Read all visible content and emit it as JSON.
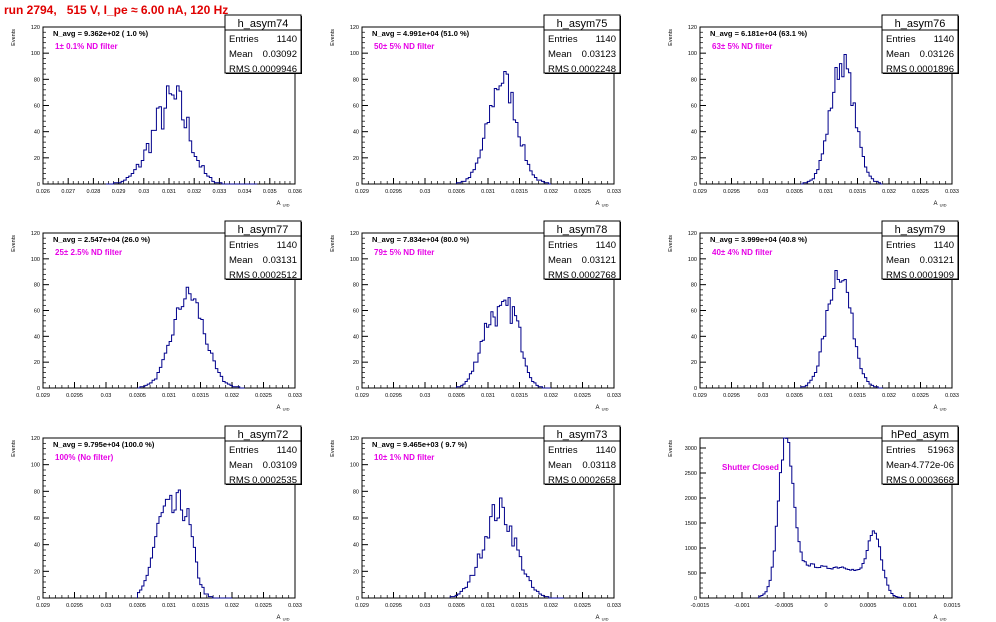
{
  "page_title": "run 2794,   515 V, I_pe ≈ 6.00 nA, 120 Hz",
  "colors": {
    "hist": "#00008b",
    "annotation": "#e600e6",
    "title": "#e00000",
    "frame": "#000000"
  },
  "chart_data": [
    {
      "type": "bar",
      "name": "h_asym74",
      "xlabel": "A_UID",
      "ylabel": "Events",
      "xlim": [
        0.026,
        0.036
      ],
      "ylim": [
        0,
        120
      ],
      "xticks": [
        "0.026",
        "0.027",
        "0.028",
        "0.029",
        "0.03",
        "0.031",
        "0.032",
        "0.033",
        "0.034",
        "0.035",
        "0.036"
      ],
      "yticks": [
        "0",
        "20",
        "40",
        "60",
        "80",
        "100",
        "120"
      ],
      "stats": {
        "entries_label": "Entries",
        "entries": "1140",
        "mean_label": "Mean",
        "mean": "0.03092",
        "rms_label": "RMS",
        "rms": "0.0009946"
      },
      "navg": "N_avg = 9.362e+02 ( 1.0 %)",
      "filter": "1± 0.1% ND filter",
      "dist": {
        "peaks": [
          {
            "mu": 0.0309,
            "sigma": 0.0007,
            "amp": 48
          },
          {
            "mu": 0.0315,
            "sigma": 0.0005,
            "amp": 22
          }
        ],
        "range": [
          0.0285,
          0.0345
        ],
        "bins": 60,
        "noise": 0.3
      }
    },
    {
      "type": "bar",
      "name": "h_asym75",
      "xlabel": "A_UID",
      "ylabel": "Events",
      "xlim": [
        0.029,
        0.033
      ],
      "ylim": [
        0,
        120
      ],
      "xticks": [
        "0.029",
        "0.0295",
        "0.03",
        "0.0305",
        "0.031",
        "0.0315",
        "0.032",
        "0.0325",
        "0.033"
      ],
      "yticks": [
        "0",
        "20",
        "40",
        "60",
        "80",
        "100",
        "120"
      ],
      "stats": {
        "entries_label": "Entries",
        "entries": "1140",
        "mean_label": "Mean",
        "mean": "0.03123",
        "rms_label": "RMS",
        "rms": "0.0002248"
      },
      "navg": "N_avg = 4.991e+04 (51.0 %)",
      "filter": "50± 5% ND filter",
      "dist": {
        "peaks": [
          {
            "mu": 0.03123,
            "sigma": 0.000225,
            "amp": 80
          }
        ],
        "range": [
          0.0305,
          0.032
        ],
        "bins": 40,
        "noise": 0.15
      }
    },
    {
      "type": "bar",
      "name": "h_asym76",
      "xlabel": "A_UID",
      "ylabel": "Events",
      "xlim": [
        0.029,
        0.033
      ],
      "ylim": [
        0,
        120
      ],
      "xticks": [
        "0.029",
        "0.0295",
        "0.03",
        "0.0305",
        "0.031",
        "0.0315",
        "0.032",
        "0.0325",
        "0.033"
      ],
      "yticks": [
        "0",
        "20",
        "40",
        "60",
        "80",
        "100",
        "120"
      ],
      "stats": {
        "entries_label": "Entries",
        "entries": "1140",
        "mean_label": "Mean",
        "mean": "0.03126",
        "rms_label": "RMS",
        "rms": "0.0001896"
      },
      "navg": "N_avg = 6.181e+04 (63.1 %)",
      "filter": "63± 5% ND filter",
      "dist": {
        "peaks": [
          {
            "mu": 0.03126,
            "sigma": 0.00019,
            "amp": 93
          }
        ],
        "range": [
          0.0306,
          0.0319
        ],
        "bins": 36,
        "noise": 0.12
      }
    },
    {
      "type": "bar",
      "name": "h_asym77",
      "xlabel": "A_UID",
      "ylabel": "Events",
      "xlim": [
        0.029,
        0.033
      ],
      "ylim": [
        0,
        120
      ],
      "xticks": [
        "0.029",
        "0.0295",
        "0.03",
        "0.0305",
        "0.031",
        "0.0315",
        "0.032",
        "0.0325",
        "0.033"
      ],
      "yticks": [
        "0",
        "20",
        "40",
        "60",
        "80",
        "100",
        "120"
      ],
      "stats": {
        "entries_label": "Entries",
        "entries": "1140",
        "mean_label": "Mean",
        "mean": "0.03131",
        "rms_label": "RMS",
        "rms": "0.0002512"
      },
      "navg": "N_avg = 2.547e+04 (26.0 %)",
      "filter": "25± 2.5% ND filter",
      "dist": {
        "peaks": [
          {
            "mu": 0.03131,
            "sigma": 0.00025,
            "amp": 72
          }
        ],
        "range": [
          0.0305,
          0.0322
        ],
        "bins": 44,
        "noise": 0.12
      }
    },
    {
      "type": "bar",
      "name": "h_asym78",
      "xlabel": "A_UID",
      "ylabel": "Events",
      "xlim": [
        0.029,
        0.033
      ],
      "ylim": [
        0,
        120
      ],
      "xticks": [
        "0.029",
        "0.0295",
        "0.03",
        "0.0305",
        "0.031",
        "0.0315",
        "0.032",
        "0.0325",
        "0.033"
      ],
      "yticks": [
        "0",
        "20",
        "40",
        "60",
        "80",
        "100",
        "120"
      ],
      "stats": {
        "entries_label": "Entries",
        "entries": "1140",
        "mean_label": "Mean",
        "mean": "0.03121",
        "rms_label": "RMS",
        "rms": "0.0002768"
      },
      "navg": "N_avg = 7.834e+04 (80.0 %)",
      "filter": "79± 5% ND filter",
      "dist": {
        "peaks": [
          {
            "mu": 0.03105,
            "sigma": 0.00018,
            "amp": 52
          },
          {
            "mu": 0.0314,
            "sigma": 0.00015,
            "amp": 50
          }
        ],
        "range": [
          0.0305,
          0.032
        ],
        "bins": 44,
        "noise": 0.18
      }
    },
    {
      "type": "bar",
      "name": "h_asym79",
      "xlabel": "A_UID",
      "ylabel": "Events",
      "xlim": [
        0.029,
        0.033
      ],
      "ylim": [
        0,
        120
      ],
      "xticks": [
        "0.029",
        "0.0295",
        "0.03",
        "0.0305",
        "0.031",
        "0.0315",
        "0.032",
        "0.0325",
        "0.033"
      ],
      "yticks": [
        "0",
        "20",
        "40",
        "60",
        "80",
        "100",
        "120"
      ],
      "stats": {
        "entries_label": "Entries",
        "entries": "1140",
        "mean_label": "Mean",
        "mean": "0.03121",
        "rms_label": "RMS",
        "rms": "0.0001909"
      },
      "navg": "N_avg = 3.999e+04 (40.8 %)",
      "filter": "40± 4% ND filter",
      "dist": {
        "peaks": [
          {
            "mu": 0.03121,
            "sigma": 0.00019,
            "amp": 92
          }
        ],
        "range": [
          0.0306,
          0.0319
        ],
        "bins": 36,
        "noise": 0.12
      }
    },
    {
      "type": "bar",
      "name": "h_asym72",
      "xlabel": "A_UID",
      "ylabel": "Events",
      "xlim": [
        0.029,
        0.033
      ],
      "ylim": [
        0,
        120
      ],
      "xticks": [
        "0.029",
        "0.0295",
        "0.03",
        "0.0305",
        "0.031",
        "0.0315",
        "0.032",
        "0.0325",
        "0.033"
      ],
      "yticks": [
        "0",
        "20",
        "40",
        "60",
        "80",
        "100",
        "120"
      ],
      "stats": {
        "entries_label": "Entries",
        "entries": "1140",
        "mean_label": "Mean",
        "mean": "0.03109",
        "rms_label": "RMS",
        "rms": "0.0002535"
      },
      "navg": "N_avg = 9.795e+04 (100.0 %)",
      "filter": "100% (No filter)",
      "dist": {
        "peaks": [
          {
            "mu": 0.03092,
            "sigma": 0.00017,
            "amp": 60
          },
          {
            "mu": 0.03125,
            "sigma": 0.00014,
            "amp": 58
          }
        ],
        "range": [
          0.0305,
          0.032
        ],
        "bins": 44,
        "noise": 0.18
      }
    },
    {
      "type": "bar",
      "name": "h_asym73",
      "xlabel": "A_UID",
      "ylabel": "Events",
      "xlim": [
        0.029,
        0.033
      ],
      "ylim": [
        0,
        120
      ],
      "xticks": [
        "0.029",
        "0.0295",
        "0.03",
        "0.0305",
        "0.031",
        "0.0315",
        "0.032",
        "0.0325",
        "0.033"
      ],
      "yticks": [
        "0",
        "20",
        "40",
        "60",
        "80",
        "100",
        "120"
      ],
      "stats": {
        "entries_label": "Entries",
        "entries": "1140",
        "mean_label": "Mean",
        "mean": "0.03118",
        "rms_label": "RMS",
        "rms": "0.0002658"
      },
      "navg": "N_avg = 9.465e+03 ( 9.7 %)",
      "filter": "10± 1% ND filter",
      "dist": {
        "peaks": [
          {
            "mu": 0.03118,
            "sigma": 0.00026,
            "amp": 66
          }
        ],
        "range": [
          0.0304,
          0.0322
        ],
        "bins": 46,
        "noise": 0.16
      }
    },
    {
      "type": "bar",
      "name": "hPed_asym",
      "xlabel": "A_UID",
      "ylabel": "Events",
      "xlim": [
        -0.0015,
        0.0015
      ],
      "ylim": [
        0,
        3200
      ],
      "xticks": [
        "-0.0015",
        "-0.001",
        "-0.0005",
        "0",
        "0.0005",
        "0.001",
        "0.0015"
      ],
      "yticks": [
        "0",
        "500",
        "1000",
        "1500",
        "2000",
        "2500",
        "3000"
      ],
      "stats": {
        "entries_label": "Entries",
        "entries": "51963",
        "mean_label": "Mean",
        "mean": "-4.772e-06",
        "rms_label": "RMS",
        "rms": "0.0003668"
      },
      "navg": "",
      "filter": "Shutter Closed",
      "dist": {
        "peaks": [
          {
            "mu": -0.00048,
            "sigma": 8.5e-05,
            "amp": 2850
          },
          {
            "mu": -0.00025,
            "sigma": 0.00022,
            "amp": 600
          },
          {
            "mu": 0.00025,
            "sigma": 0.00022,
            "amp": 560
          },
          {
            "mu": 0.00058,
            "sigma": 8.5e-05,
            "amp": 1100
          }
        ],
        "range": [
          -0.0008,
          0.00092
        ],
        "bins": 70,
        "noise": 0.05
      }
    }
  ]
}
